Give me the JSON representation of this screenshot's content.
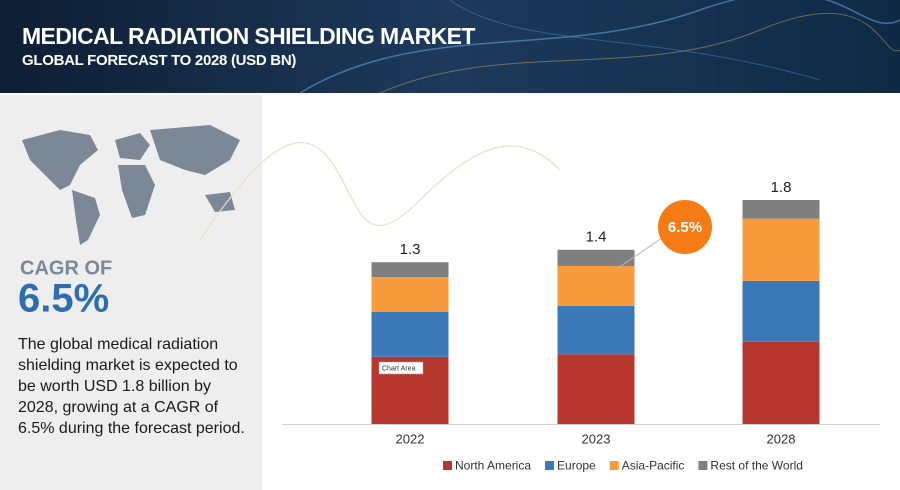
{
  "header": {
    "title": "MEDICAL RADIATION SHIELDING MARKET",
    "subtitle": "GLOBAL FORECAST TO 2028 (USD BN)"
  },
  "sidebar": {
    "cagr_label": "CAGR OF",
    "cagr_value": "6.5%",
    "description": "The global medical radiation shielding market is expected to be worth USD 1.8 billion by 2028, growing at a CAGR of 6.5% during the forecast period."
  },
  "chart_data": {
    "type": "stacked-bar",
    "categories": [
      "2022",
      "2023",
      "2028"
    ],
    "series": [
      {
        "name": "North America",
        "color": "#b7372f",
        "values": [
          0.54,
          0.56,
          0.66
        ]
      },
      {
        "name": "Europe",
        "color": "#3a78b8",
        "values": [
          0.36,
          0.39,
          0.49
        ]
      },
      {
        "name": "Asia-Pacific",
        "color": "#f89b3c",
        "values": [
          0.28,
          0.32,
          0.5
        ]
      },
      {
        "name": "Rest of the World",
        "color": "#7f7f7f",
        "values": [
          0.12,
          0.13,
          0.15
        ]
      }
    ],
    "totals": [
      1.3,
      1.4,
      1.8
    ],
    "annotation": "6.5%",
    "tooltip": "Chart Area",
    "legend": "bottom"
  }
}
